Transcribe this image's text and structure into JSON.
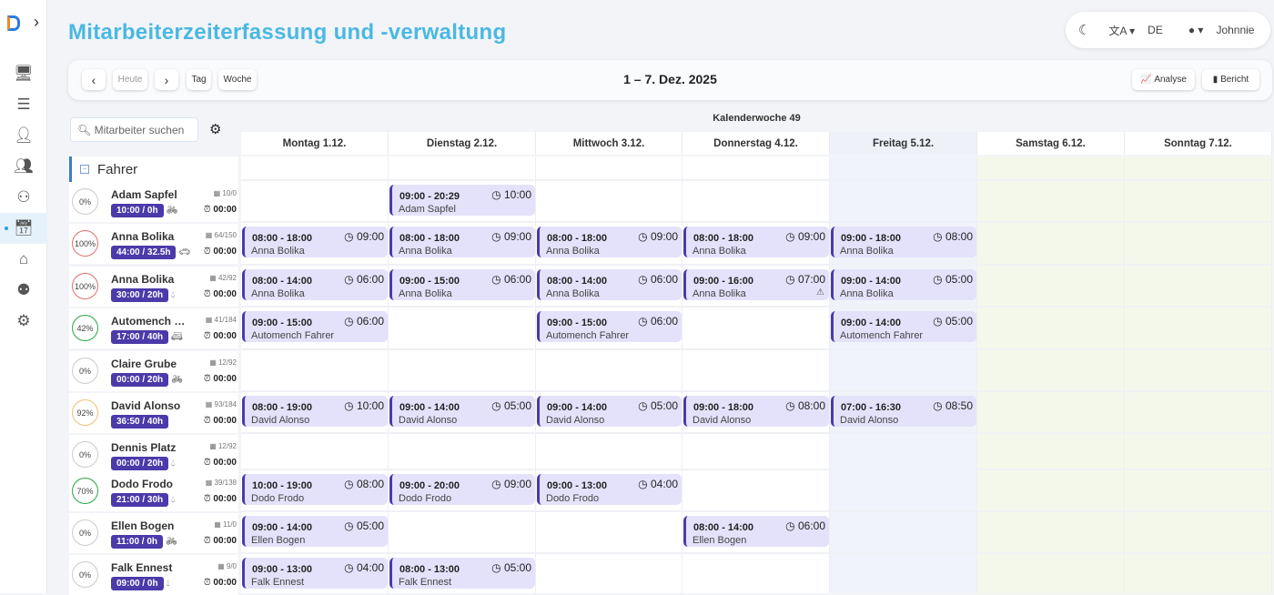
{
  "app": {
    "title": "Mitarbeiterzeiterfassung und -verwaltung"
  },
  "topbar": {
    "theme_icon": "moon-icon",
    "language": "DE",
    "user": "Johnnie"
  },
  "sidebar": {
    "items": [
      "monitor-icon",
      "checklist-icon",
      "user-check-icon",
      "team-icon",
      "org-chart-icon",
      "calendar-clock-icon",
      "house-person-icon",
      "people-icon",
      "settings-gears-icon"
    ],
    "active": 5
  },
  "toolbar": {
    "prev": "‹",
    "today": "Heute",
    "next": "›",
    "day": "Tag",
    "week": "Woche",
    "range": "1 – 7. Dez. 2025",
    "analyse": "Analyse",
    "bericht": "Bericht"
  },
  "panel": {
    "search_placeholder": "Mitarbeiter suchen",
    "group": "Fahrer"
  },
  "calendar": {
    "week_label": "Kalenderwoche 49",
    "days": [
      "Montag 1.12.",
      "Dienstag 2.12.",
      "Mittwoch 3.12.",
      "Donnerstag 4.12.",
      "Freitag 5.12.",
      "Samstag 6.12.",
      "Sonntag 7.12."
    ]
  },
  "colors": {
    "accent": "#4ab8e3",
    "badge": "#4b3aa9",
    "shift_bg": "#e4e2fb"
  },
  "employees": [
    {
      "name": "Adam Sapfel",
      "percent": "0%",
      "ring": "#cccccc",
      "hours": "10:00 / 0h",
      "vehicle": "bicycle-icon",
      "stat": "10/0",
      "alarm": "00:00",
      "shifts": [
        null,
        {
          "time": "09:00 - 20:29",
          "dur": "10:00"
        },
        null,
        null,
        null,
        null,
        null
      ]
    },
    {
      "name": "Anna Bolika",
      "percent": "100%",
      "ring": "#e07070",
      "hours": "44:00 / 32.5h",
      "vehicle": "car-icon",
      "stat": "64/150",
      "alarm": "00:00",
      "shifts": [
        {
          "time": "08:00 - 18:00",
          "dur": "09:00"
        },
        {
          "time": "08:00 - 18:00",
          "dur": "09:00"
        },
        {
          "time": "08:00 - 18:00",
          "dur": "09:00"
        },
        {
          "time": "08:00 - 18:00",
          "dur": "09:00"
        },
        {
          "time": "09:00 - 18:00",
          "dur": "08:00"
        },
        null,
        null
      ]
    },
    {
      "name": "Anna Bolika",
      "percent": "100%",
      "ring": "#e07070",
      "hours": "30:00 / 20h",
      "vehicle": "drop-icon",
      "stat": "42/92",
      "alarm": "00:00",
      "shifts": [
        {
          "time": "08:00 - 14:00",
          "dur": "06:00"
        },
        {
          "time": "09:00 - 15:00",
          "dur": "06:00"
        },
        {
          "time": "08:00 - 14:00",
          "dur": "06:00"
        },
        {
          "time": "09:00 - 16:00",
          "dur": "07:00",
          "warn": true
        },
        {
          "time": "09:00 - 14:00",
          "dur": "05:00"
        },
        null,
        null
      ]
    },
    {
      "name": "Automench Fahrer",
      "percent": "42%",
      "ring": "#2aa845",
      "hours": "17:00 / 40h",
      "vehicle": "van-icon",
      "stat": "41/184",
      "alarm": "00:00",
      "shifts": [
        {
          "time": "09:00 - 15:00",
          "dur": "06:00"
        },
        null,
        {
          "time": "09:00 - 15:00",
          "dur": "06:00"
        },
        null,
        {
          "time": "09:00 - 14:00",
          "dur": "05:00"
        },
        null,
        null
      ]
    },
    {
      "name": "Claire Grube",
      "percent": "0%",
      "ring": "#cccccc",
      "hours": "00:00 / 20h",
      "vehicle": "bicycle-icon",
      "stat": "12/92",
      "alarm": "00:00",
      "shifts": [
        null,
        null,
        null,
        null,
        null,
        null,
        null
      ]
    },
    {
      "name": "David Alonso",
      "percent": "92%",
      "ring": "#f0c070",
      "hours": "36:50 / 40h",
      "vehicle": "",
      "stat": "93/184",
      "alarm": "00:00",
      "shifts": [
        {
          "time": "08:00 - 19:00",
          "dur": "10:00"
        },
        {
          "time": "09:00 - 14:00",
          "dur": "05:00"
        },
        {
          "time": "09:00 - 14:00",
          "dur": "05:00"
        },
        {
          "time": "09:00 - 18:00",
          "dur": "08:00"
        },
        {
          "time": "07:00 - 16:30",
          "dur": "08:50"
        },
        null,
        null
      ]
    },
    {
      "name": "Dennis Platz",
      "percent": "0%",
      "ring": "#cccccc",
      "hours": "00:00 / 20h",
      "vehicle": "drop-icon",
      "stat": "12/92",
      "alarm": "00:00",
      "shifts": [
        null,
        null,
        null,
        null,
        null,
        null,
        null
      ]
    },
    {
      "name": "Dodo Frodo",
      "percent": "70%",
      "ring": "#2aa845",
      "hours": "21:00 / 30h",
      "vehicle": "drop-icon",
      "stat": "39/138",
      "alarm": "00:00",
      "shifts": [
        {
          "time": "10:00 - 19:00",
          "dur": "08:00"
        },
        {
          "time": "09:00 - 20:00",
          "dur": "09:00"
        },
        {
          "time": "09:00 - 13:00",
          "dur": "04:00"
        },
        null,
        null,
        null,
        null
      ]
    },
    {
      "name": "Ellen Bogen",
      "percent": "0%",
      "ring": "#cccccc",
      "hours": "11:00 / 0h",
      "vehicle": "bicycle-icon",
      "stat": "11/0",
      "alarm": "00:00",
      "shifts": [
        {
          "time": "09:00 - 14:00",
          "dur": "05:00"
        },
        null,
        null,
        {
          "time": "08:00 - 14:00",
          "dur": "06:00"
        },
        null,
        null,
        null
      ]
    },
    {
      "name": "Falk Ennest",
      "percent": "0%",
      "ring": "#cccccc",
      "hours": "09:00 / 0h",
      "vehicle": "drop-icon",
      "stat": "9/0",
      "alarm": "00:00",
      "shifts": [
        {
          "time": "09:00 - 13:00",
          "dur": "04:00"
        },
        {
          "time": "08:00 - 13:00",
          "dur": "05:00"
        },
        null,
        null,
        null,
        null,
        null
      ]
    }
  ]
}
